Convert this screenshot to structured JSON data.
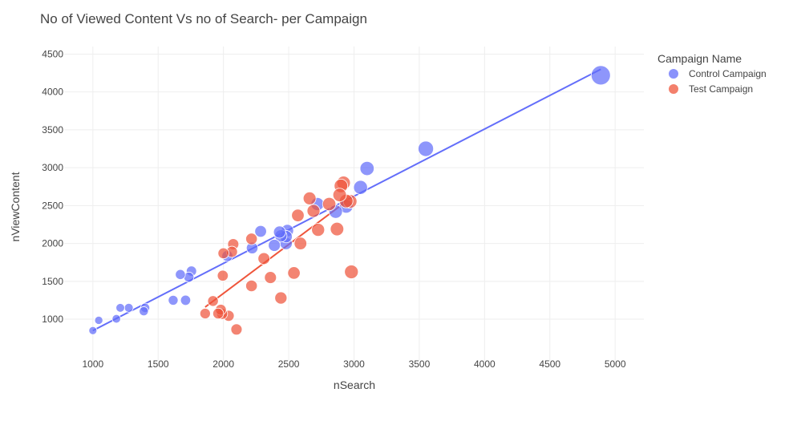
{
  "chart_data": {
    "type": "scatter",
    "title": "No of Viewed Content Vs no of Search- per Campaign",
    "xlabel": "nSearch",
    "ylabel": "nViewContent",
    "xlim": [
      780,
      5220
    ],
    "ylim": [
      450,
      4600
    ],
    "xticks": [
      1000,
      1500,
      2000,
      2500,
      3000,
      3500,
      4000,
      4500,
      5000
    ],
    "yticks": [
      1000,
      1500,
      2000,
      2500,
      3000,
      3500,
      4000,
      4500
    ],
    "grid": true,
    "bubble_size_scale": "marker size proportional to nSearch",
    "legend": {
      "title": "Campaign Name",
      "placement": "right"
    },
    "series": [
      {
        "name": "Control Campaign",
        "color": "#636efa",
        "trendline": [
          [
            1000,
            850
          ],
          [
            4890,
            4300
          ]
        ],
        "points": [
          [
            1000,
            850
          ],
          [
            1045,
            985
          ],
          [
            1180,
            1005
          ],
          [
            1210,
            1150
          ],
          [
            1275,
            1150
          ],
          [
            1390,
            1105
          ],
          [
            1400,
            1150
          ],
          [
            1615,
            1250
          ],
          [
            1670,
            1590
          ],
          [
            1710,
            1250
          ],
          [
            1735,
            1555
          ],
          [
            1755,
            1635
          ],
          [
            2030,
            1835
          ],
          [
            2220,
            1940
          ],
          [
            2285,
            2160
          ],
          [
            2390,
            1975
          ],
          [
            2430,
            2150
          ],
          [
            2440,
            2100
          ],
          [
            2480,
            2000
          ],
          [
            2480,
            2090
          ],
          [
            2490,
            2170
          ],
          [
            2720,
            2520
          ],
          [
            2860,
            2420
          ],
          [
            2940,
            2490
          ],
          [
            3050,
            2740
          ],
          [
            3100,
            2990
          ],
          [
            3550,
            3250
          ],
          [
            4890,
            4220
          ]
        ]
      },
      {
        "name": "Test Campaign",
        "color": "#ef553b",
        "trendline": [
          [
            1860,
            1160
          ],
          [
            2960,
            2580
          ]
        ],
        "points": [
          [
            1860,
            1075
          ],
          [
            1920,
            1240
          ],
          [
            1960,
            1075
          ],
          [
            1980,
            1125
          ],
          [
            1990,
            1070
          ],
          [
            1995,
            1575
          ],
          [
            2000,
            1870
          ],
          [
            2040,
            1045
          ],
          [
            2065,
            1890
          ],
          [
            2075,
            1990
          ],
          [
            2100,
            865
          ],
          [
            2215,
            2060
          ],
          [
            2215,
            1440
          ],
          [
            2310,
            1800
          ],
          [
            2360,
            1550
          ],
          [
            2440,
            1280
          ],
          [
            2540,
            1610
          ],
          [
            2570,
            2370
          ],
          [
            2590,
            2000
          ],
          [
            2660,
            2595
          ],
          [
            2690,
            2430
          ],
          [
            2725,
            2180
          ],
          [
            2810,
            2520
          ],
          [
            2870,
            2190
          ],
          [
            2890,
            2640
          ],
          [
            2900,
            2760
          ],
          [
            2920,
            2800
          ],
          [
            2940,
            2560
          ],
          [
            2970,
            2555
          ],
          [
            2980,
            1625
          ]
        ]
      }
    ]
  }
}
